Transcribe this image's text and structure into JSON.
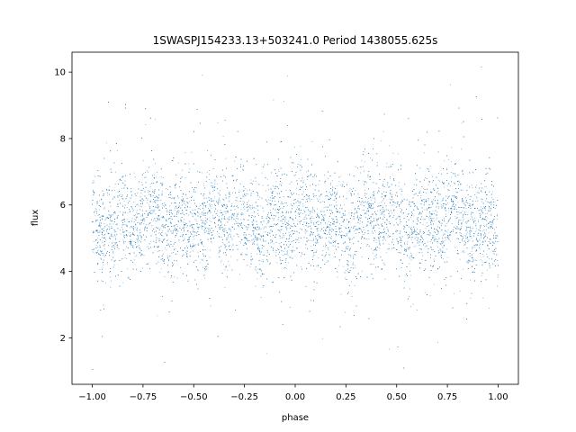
{
  "chart_data": {
    "type": "scatter",
    "title": "1SWASPJ154233.13+503241.0 Period 1438055.625s",
    "xlabel": "phase",
    "ylabel": "flux",
    "xlim": [
      -1.1,
      1.1
    ],
    "ylim": [
      0.6,
      10.6
    ],
    "xticks": [
      -1.0,
      -0.75,
      -0.5,
      -0.25,
      0.0,
      0.25,
      0.5,
      0.75,
      1.0
    ],
    "xtick_labels": [
      "−1.00",
      "−0.75",
      "−0.50",
      "−0.25",
      "0.00",
      "0.25",
      "0.50",
      "0.75",
      "1.00"
    ],
    "yticks": [
      2,
      4,
      6,
      8,
      10
    ],
    "ytick_labels": [
      "2",
      "4",
      "6",
      "8",
      "10"
    ],
    "grid": false,
    "marker_color": "#1f77b4",
    "series": [
      {
        "description": "dense periodic light curve; flux mostly between 4 and 7, sparse outliers 1–10",
        "point_count_approx": 14000,
        "x_range": [
          -1.0,
          1.0
        ],
        "median_flux": 5.5,
        "core_spread": [
          4.0,
          7.0
        ],
        "outlier_range": [
          1.0,
          10.2
        ]
      }
    ]
  }
}
